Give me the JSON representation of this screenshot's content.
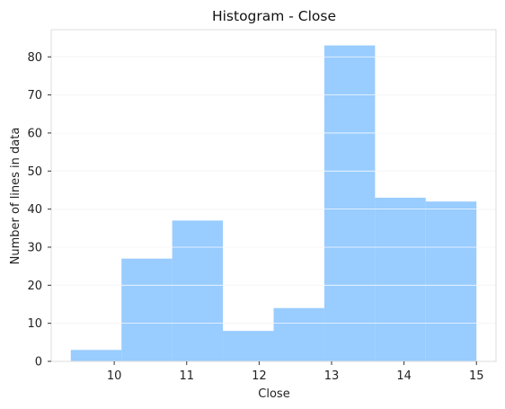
{
  "chart_data": {
    "type": "bar",
    "title": "Histogram - Close",
    "xlabel": "Close",
    "ylabel": "Number of lines in data",
    "bins": [
      {
        "x0": 9.4,
        "x1": 10.1,
        "count": 3
      },
      {
        "x0": 10.1,
        "x1": 10.8,
        "count": 27
      },
      {
        "x0": 10.8,
        "x1": 11.5,
        "count": 37
      },
      {
        "x0": 11.5,
        "x1": 12.2,
        "count": 8
      },
      {
        "x0": 12.2,
        "x1": 12.9,
        "count": 14
      },
      {
        "x0": 12.9,
        "x1": 13.6,
        "count": 83
      },
      {
        "x0": 13.6,
        "x1": 14.3,
        "count": 43
      },
      {
        "x0": 14.3,
        "x1": 15.0,
        "count": 42
      }
    ],
    "xlim": [
      9.13,
      15.27
    ],
    "ylim": [
      0,
      87.15
    ],
    "xticks": [
      10,
      11,
      12,
      13,
      14,
      15
    ],
    "yticks": [
      0,
      10,
      20,
      30,
      40,
      50,
      60,
      70,
      80
    ],
    "grid": "horizontal",
    "bar_color": "#99ccff",
    "grid_color": "#e6e6e6",
    "frame_color": "#dddddd"
  }
}
